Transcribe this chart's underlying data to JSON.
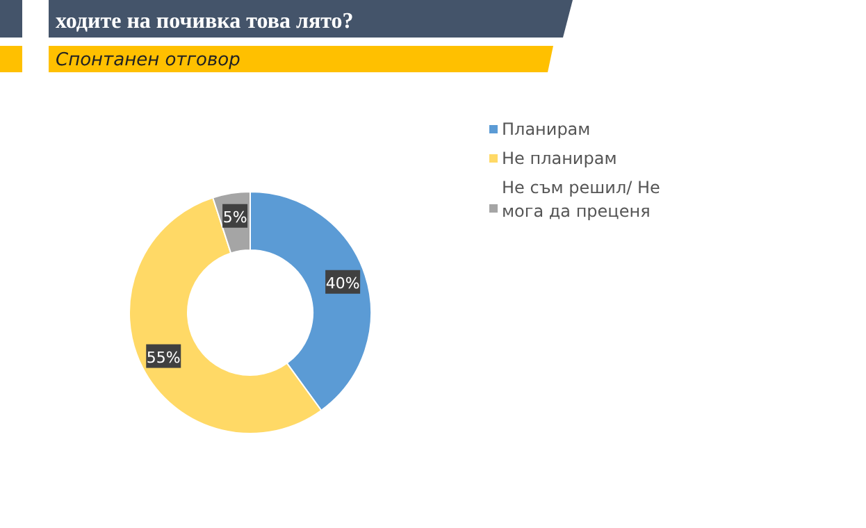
{
  "chart_data": {
    "type": "donut",
    "title": "ходите на почивка това лято?",
    "subtitle": "Спонтанен отговор",
    "categories": [
      "Планирам",
      "Не планирам",
      "Не съм решил/ Не мога да преценя"
    ],
    "values": [
      40,
      55,
      5
    ],
    "colors": [
      "#5b9bd5",
      "#ffd966",
      "#a5a5a5"
    ],
    "value_labels": [
      "40%",
      "55%",
      "5%"
    ],
    "legend": "right"
  }
}
